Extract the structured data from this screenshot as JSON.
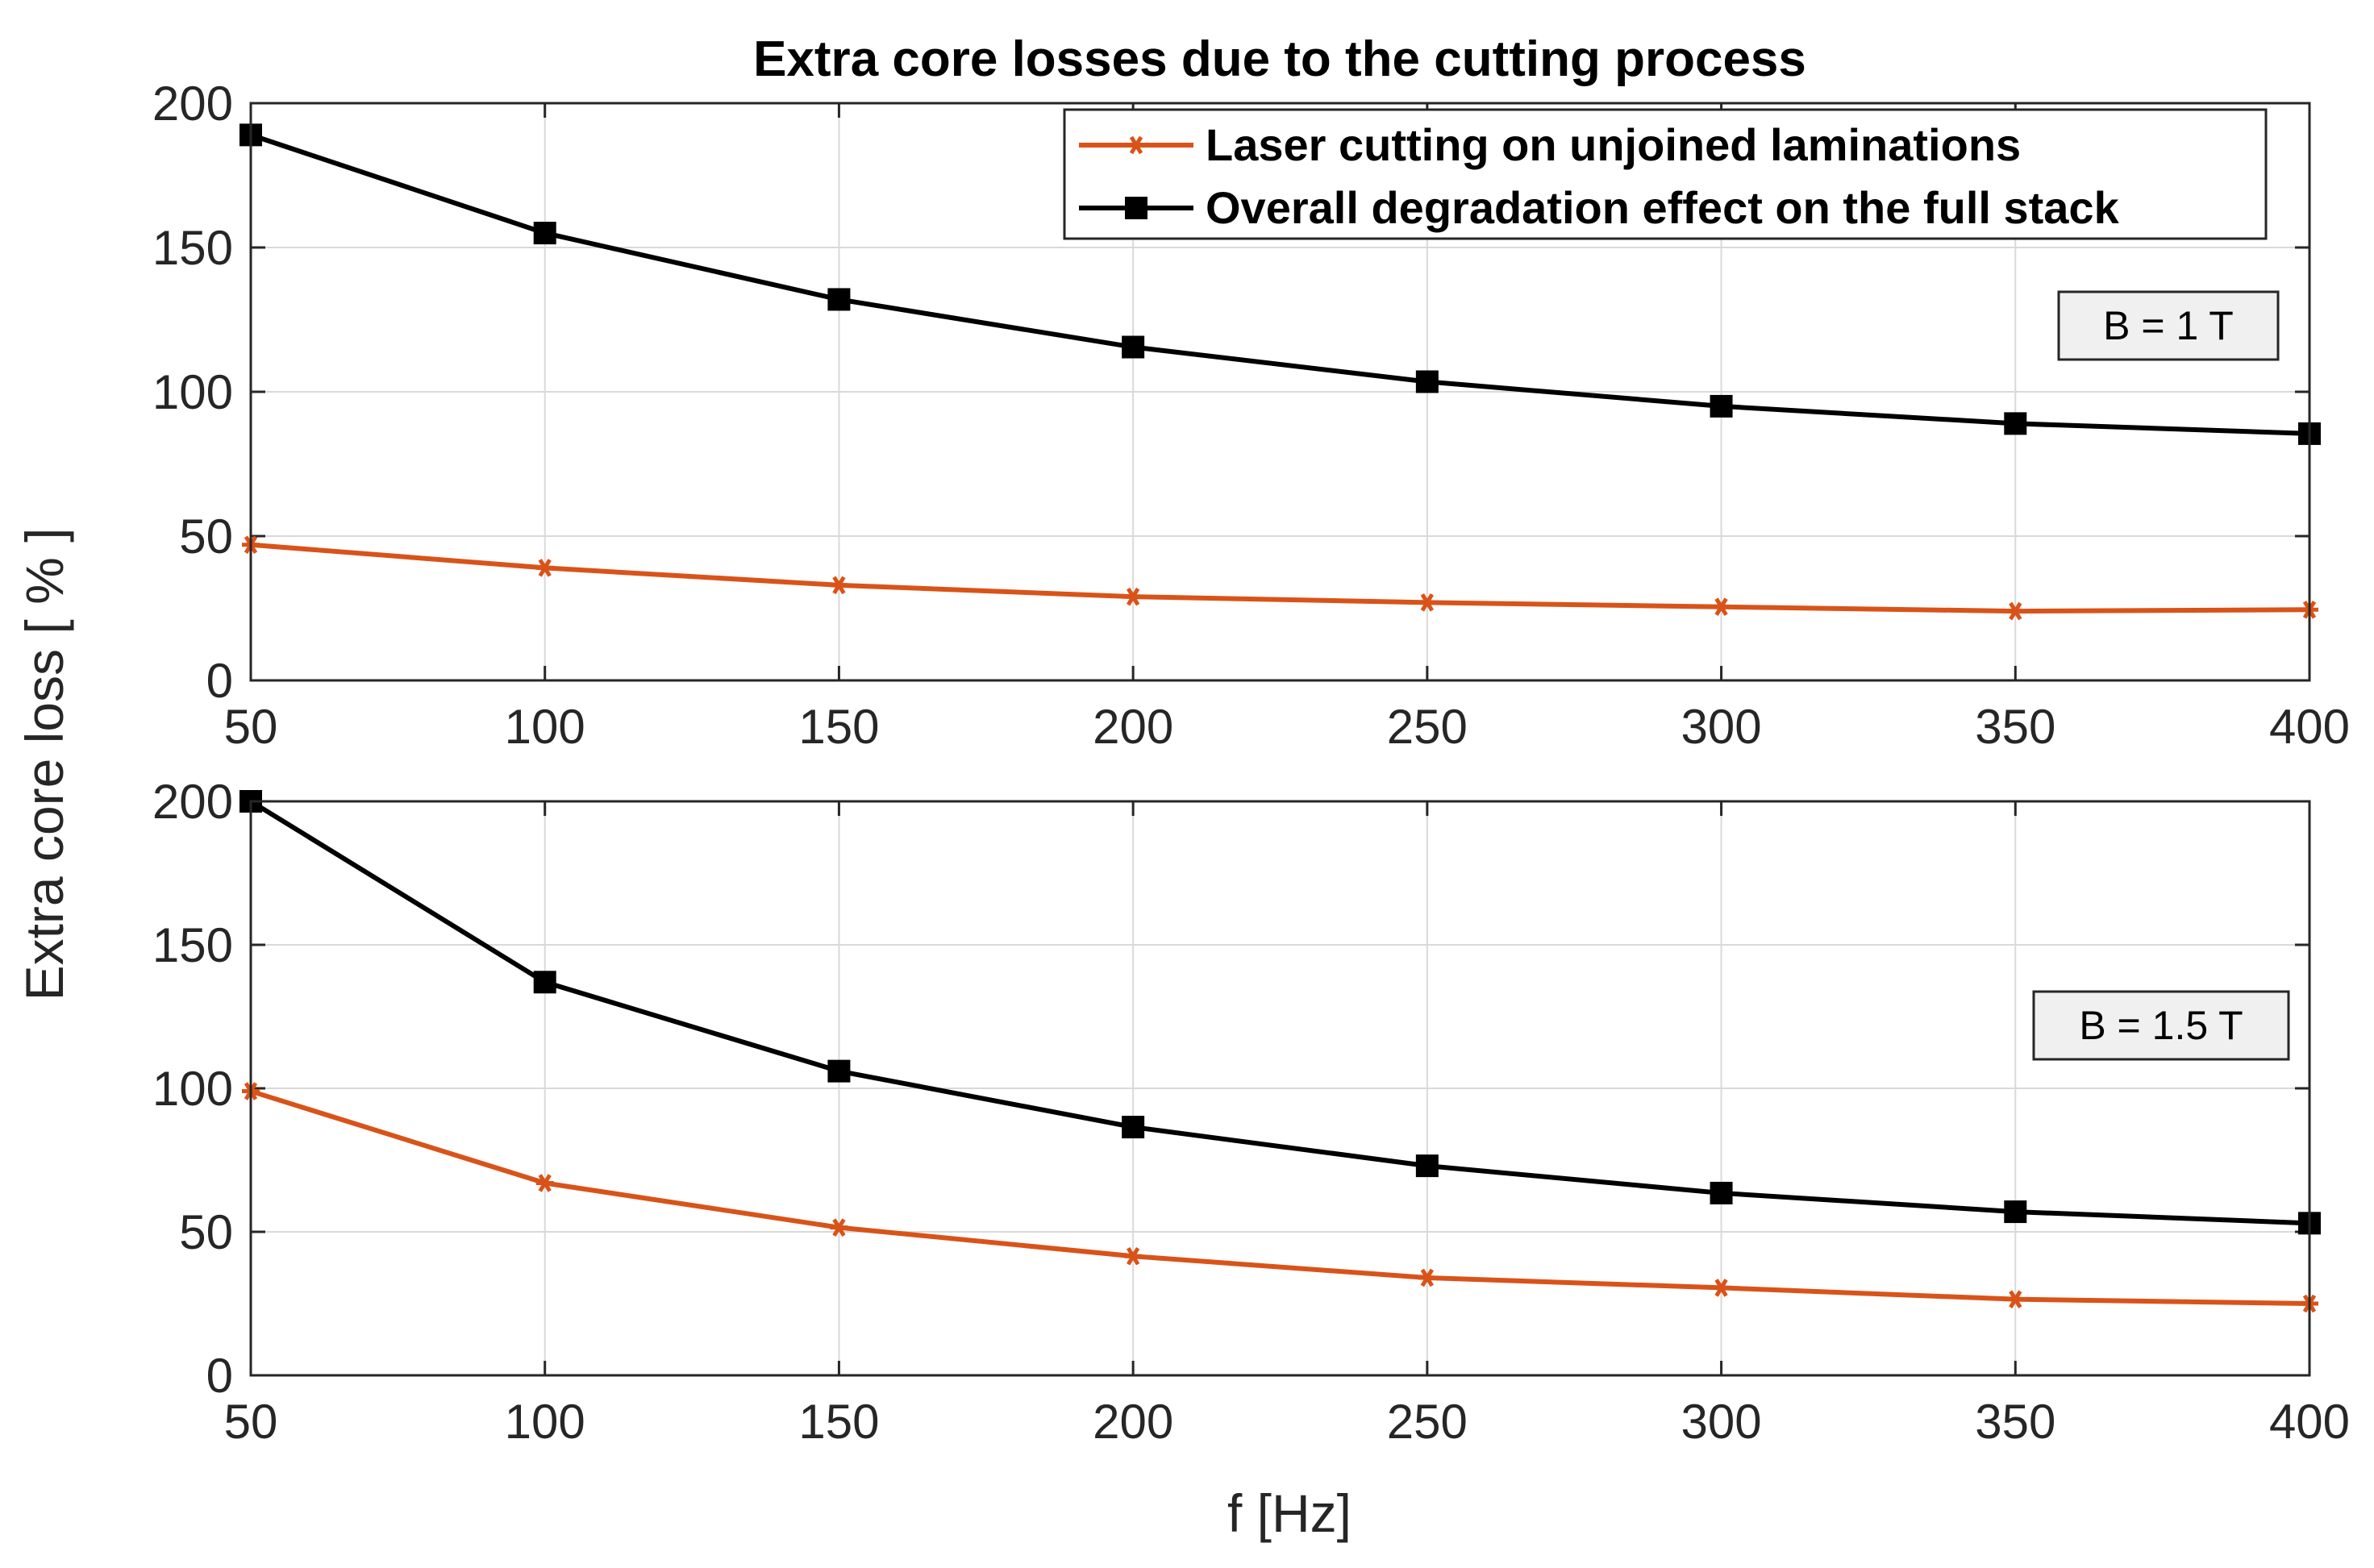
{
  "chart_data": [
    {
      "type": "line",
      "title": "Extra core losses due to the cutting process",
      "xlabel": "",
      "ylabel": "Extra core loss [ % ]",
      "x": [
        50,
        100,
        150,
        200,
        250,
        300,
        350,
        400
      ],
      "xticks": [
        "50",
        "100",
        "150",
        "200",
        "250",
        "300",
        "350",
        "400"
      ],
      "yticks": [
        "0",
        "50",
        "100",
        "150",
        "200"
      ],
      "xlim": [
        50,
        400
      ],
      "ylim": [
        0,
        200
      ],
      "grid": true,
      "annotation": "B = 1 T",
      "legend": {
        "location": "top-right",
        "entries": [
          "Laser cutting on unjoined laminations",
          "Overall degradation effect on the full stack"
        ]
      },
      "series": [
        {
          "name": "Laser cutting on unjoined laminations",
          "color": "#d95319",
          "marker": "asterisk",
          "values": [
            47,
            39,
            33,
            29,
            27,
            25.5,
            24,
            24.5
          ]
        },
        {
          "name": "Overall degradation effect on the full stack",
          "color": "#000000",
          "marker": "square",
          "values": [
            189,
            155,
            132,
            115.5,
            103.5,
            95,
            89,
            85.5
          ]
        }
      ]
    },
    {
      "type": "line",
      "title": "",
      "xlabel": "f [Hz]",
      "ylabel": "Extra core loss [ % ]",
      "x": [
        50,
        100,
        150,
        200,
        250,
        300,
        350,
        400
      ],
      "xticks": [
        "50",
        "100",
        "150",
        "200",
        "250",
        "300",
        "350",
        "400"
      ],
      "yticks": [
        "0",
        "50",
        "100",
        "150",
        "200"
      ],
      "xlim": [
        50,
        400
      ],
      "ylim": [
        0,
        200
      ],
      "grid": true,
      "annotation": "B = 1.5 T",
      "series": [
        {
          "name": "Laser cutting on unjoined laminations",
          "color": "#d95319",
          "marker": "asterisk",
          "values": [
            99,
            67,
            51.5,
            41.5,
            34,
            30.5,
            26.5,
            25
          ]
        },
        {
          "name": "Overall degradation effect on the full stack",
          "color": "#000000",
          "marker": "square",
          "values": [
            200,
            137,
            106,
            86.5,
            73,
            63.5,
            57,
            53
          ]
        }
      ]
    }
  ]
}
